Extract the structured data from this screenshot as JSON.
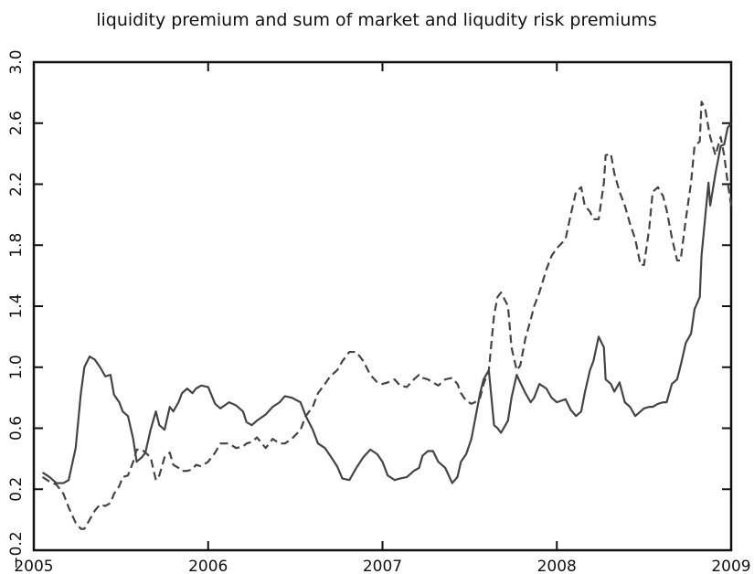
{
  "chart_data": {
    "type": "line",
    "title": "liquidity premium and sum of market and liqudity risk premiums",
    "x": [
      2005.05,
      2005.09,
      2005.13,
      2005.17,
      2005.2,
      2005.24,
      2005.27,
      2005.29,
      2005.32,
      2005.35,
      2005.38,
      2005.41,
      2005.44,
      2005.46,
      2005.49,
      2005.51,
      2005.54,
      2005.57,
      2005.59,
      2005.62,
      2005.64,
      2005.67,
      2005.7,
      2005.72,
      2005.75,
      2005.78,
      2005.8,
      2005.83,
      2005.85,
      2005.88,
      2005.91,
      2005.93,
      2005.96,
      2006.0,
      2006.04,
      2006.07,
      2006.12,
      2006.16,
      2006.2,
      2006.22,
      2006.25,
      2006.28,
      2006.33,
      2006.37,
      2006.41,
      2006.44,
      2006.48,
      2006.53,
      2006.56,
      2006.6,
      2006.63,
      2006.67,
      2006.7,
      2006.74,
      2006.77,
      2006.81,
      2006.85,
      2006.89,
      2006.93,
      2006.97,
      2007.0,
      2007.03,
      2007.07,
      2007.1,
      2007.14,
      2007.18,
      2007.21,
      2007.23,
      2007.26,
      2007.29,
      2007.32,
      2007.36,
      2007.4,
      2007.43,
      2007.45,
      2007.48,
      2007.51,
      2007.53,
      2007.56,
      2007.58,
      2007.61,
      2007.64,
      2007.66,
      2007.68,
      2007.72,
      2007.74,
      2007.77,
      2007.79,
      2007.82,
      2007.85,
      2007.87,
      2007.9,
      2007.94,
      2007.97,
      2008.0,
      2008.05,
      2008.08,
      2008.11,
      2008.14,
      2008.16,
      2008.19,
      2008.21,
      2008.24,
      2008.27,
      2008.28,
      2008.31,
      2008.33,
      2008.36,
      2008.39,
      2008.42,
      2008.45,
      2008.48,
      2008.5,
      2008.53,
      2008.55,
      2008.58,
      2008.61,
      2008.63,
      2008.66,
      2008.69,
      2008.71,
      2008.74,
      2008.77,
      2008.79,
      2008.82,
      2008.83,
      2008.85,
      2008.87,
      2008.88,
      2008.91,
      2008.94,
      2008.96,
      2008.98,
      2009.0
    ],
    "series": [
      {
        "color": "#444444",
        "line_style": "solid",
        "values": [
          0.31,
          0.28,
          0.24,
          0.24,
          0.26,
          0.47,
          0.83,
          1.0,
          1.07,
          1.05,
          1.0,
          0.94,
          0.95,
          0.82,
          0.77,
          0.71,
          0.68,
          0.53,
          0.38,
          0.41,
          0.44,
          0.59,
          0.71,
          0.62,
          0.59,
          0.74,
          0.71,
          0.77,
          0.83,
          0.86,
          0.83,
          0.86,
          0.88,
          0.87,
          0.76,
          0.73,
          0.77,
          0.75,
          0.71,
          0.64,
          0.62,
          0.65,
          0.69,
          0.74,
          0.77,
          0.81,
          0.8,
          0.77,
          0.68,
          0.59,
          0.5,
          0.47,
          0.42,
          0.35,
          0.27,
          0.26,
          0.34,
          0.41,
          0.46,
          0.43,
          0.38,
          0.29,
          0.26,
          0.27,
          0.28,
          0.32,
          0.34,
          0.42,
          0.45,
          0.45,
          0.38,
          0.34,
          0.24,
          0.28,
          0.38,
          0.43,
          0.53,
          0.65,
          0.83,
          0.92,
          0.98,
          0.62,
          0.6,
          0.57,
          0.65,
          0.8,
          0.95,
          0.9,
          0.83,
          0.77,
          0.8,
          0.89,
          0.86,
          0.8,
          0.77,
          0.79,
          0.72,
          0.68,
          0.71,
          0.83,
          0.98,
          1.04,
          1.2,
          1.13,
          0.92,
          0.89,
          0.84,
          0.9,
          0.77,
          0.74,
          0.68,
          0.71,
          0.73,
          0.74,
          0.74,
          0.76,
          0.77,
          0.77,
          0.89,
          0.92,
          1.01,
          1.16,
          1.22,
          1.38,
          1.46,
          1.73,
          1.97,
          2.21,
          2.06,
          2.27,
          2.45,
          2.46,
          2.57,
          2.6
        ]
      },
      {
        "color": "#444444",
        "line_style": "dashed",
        "values": [
          0.28,
          0.25,
          0.23,
          0.17,
          0.08,
          -0.02,
          -0.06,
          -0.06,
          0,
          0.06,
          0.1,
          0.09,
          0.11,
          0.17,
          0.22,
          0.28,
          0.29,
          0.38,
          0.46,
          0.46,
          0.44,
          0.41,
          0.26,
          0.29,
          0.41,
          0.44,
          0.36,
          0.34,
          0.32,
          0.32,
          0.33,
          0.36,
          0.35,
          0.38,
          0.44,
          0.5,
          0.5,
          0.47,
          0.48,
          0.5,
          0.51,
          0.54,
          0.47,
          0.53,
          0.5,
          0.5,
          0.53,
          0.59,
          0.68,
          0.74,
          0.83,
          0.89,
          0.94,
          0.98,
          1.04,
          1.1,
          1.1,
          1.04,
          0.95,
          0.9,
          0.89,
          0.9,
          0.92,
          0.88,
          0.87,
          0.92,
          0.95,
          0.93,
          0.92,
          0.9,
          0.88,
          0.92,
          0.93,
          0.89,
          0.83,
          0.78,
          0.76,
          0.77,
          0.8,
          0.89,
          0.98,
          1.34,
          1.46,
          1.49,
          1.4,
          1.13,
          0.98,
          1.01,
          1.19,
          1.31,
          1.4,
          1.49,
          1.64,
          1.73,
          1.78,
          1.84,
          2.0,
          2.15,
          2.18,
          2.06,
          2.02,
          1.97,
          1.97,
          2.21,
          2.39,
          2.4,
          2.27,
          2.15,
          2.06,
          1.94,
          1.84,
          1.67,
          1.67,
          1.91,
          2.15,
          2.18,
          2.12,
          2.03,
          1.85,
          1.7,
          1.7,
          1.97,
          2.21,
          2.45,
          2.48,
          2.74,
          2.7,
          2.57,
          2.51,
          2.39,
          2.51,
          2.39,
          2.21,
          2.06
        ]
      }
    ],
    "xlim": [
      2005,
      2009
    ],
    "xticks": [
      2005,
      2006,
      2007,
      2008,
      2009
    ],
    "ylim": [
      -0.2,
      3.0
    ],
    "yticks": [
      {
        "value": -0.2,
        "label": "−0.2"
      },
      0.2,
      0.6,
      {
        "value": 1.0,
        "label": "1.0"
      },
      1.4,
      1.8,
      2.2,
      2.6,
      {
        "value": 3.0,
        "label": "3.0"
      }
    ]
  }
}
